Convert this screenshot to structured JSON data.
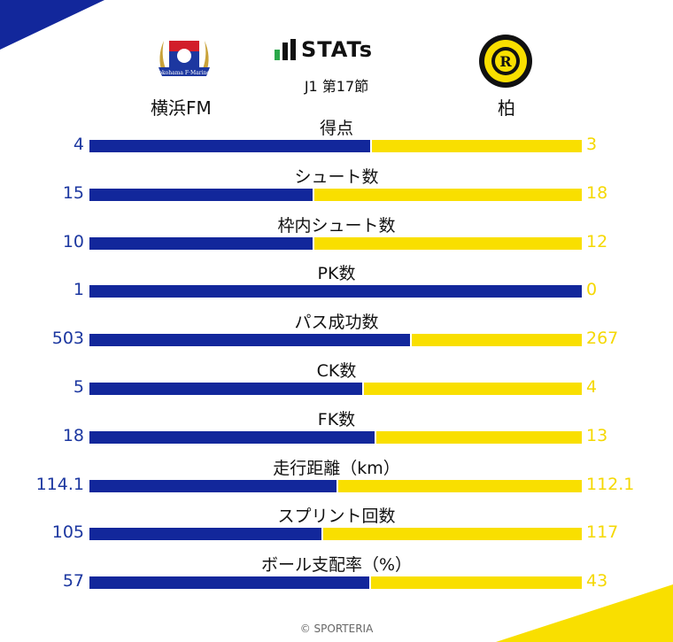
{
  "brand": {
    "title": "STATs"
  },
  "round": "J1 第17節",
  "teams": {
    "home": {
      "name": "横浜FM",
      "color": "#12279b"
    },
    "away": {
      "name": "柏",
      "color": "#f9df00"
    }
  },
  "footer": "© SPORTERIA",
  "chart_data": {
    "type": "bar",
    "categories": [
      "得点",
      "シュート数",
      "枠内シュート数",
      "PK数",
      "パス成功数",
      "CK数",
      "FK数",
      "走行距離（km）",
      "スプリント回数",
      "ボール支配率（%）"
    ],
    "series": [
      {
        "name": "横浜FM",
        "values": [
          4,
          15,
          10,
          1,
          503,
          5,
          18,
          114.1,
          105,
          57
        ]
      },
      {
        "name": "柏",
        "values": [
          3,
          18,
          12,
          0,
          267,
          4,
          13,
          112.1,
          117,
          43
        ]
      }
    ],
    "value_labels": {
      "home": [
        "4",
        "15",
        "10",
        "1",
        "503",
        "5",
        "18",
        "114.1",
        "105",
        "57"
      ],
      "away": [
        "3",
        "18",
        "12",
        "0",
        "267",
        "4",
        "13",
        "112.1",
        "117",
        "43"
      ]
    }
  }
}
